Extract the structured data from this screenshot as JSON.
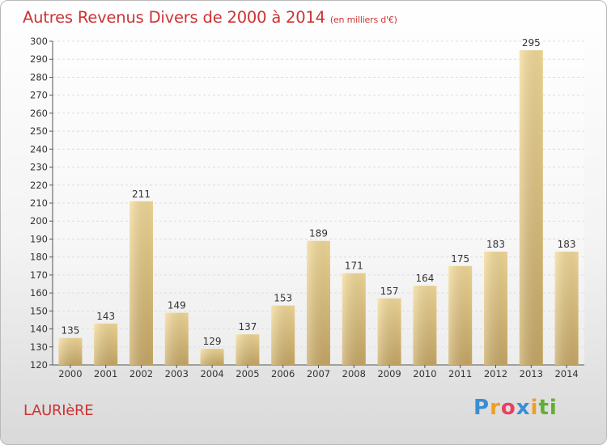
{
  "header": {
    "title": "Autres Revenus Divers de 2000 à 2014",
    "unit": "(en milliers d'€)"
  },
  "footer": {
    "city": "LAURIèRE",
    "logo_letters": [
      "P",
      "r",
      "o",
      "x",
      "i",
      "ti"
    ]
  },
  "colors": {
    "bar_light": "#f5dc9a",
    "bar_dark": "#c9aa66",
    "grid": "#dddddd",
    "axis_text": "#333333",
    "title": "#cc3333"
  },
  "chart_data": {
    "type": "bar",
    "title": "Autres Revenus Divers de 2000 à 2014",
    "categories": [
      "2000",
      "2001",
      "2002",
      "2003",
      "2004",
      "2005",
      "2006",
      "2007",
      "2008",
      "2009",
      "2010",
      "2011",
      "2012",
      "2013",
      "2014"
    ],
    "values": [
      135,
      143,
      211,
      149,
      129,
      137,
      153,
      189,
      171,
      157,
      164,
      175,
      183,
      295,
      183
    ],
    "ylim": [
      120,
      300
    ],
    "ytick_step": 10,
    "grid": true,
    "data_labels": true
  }
}
